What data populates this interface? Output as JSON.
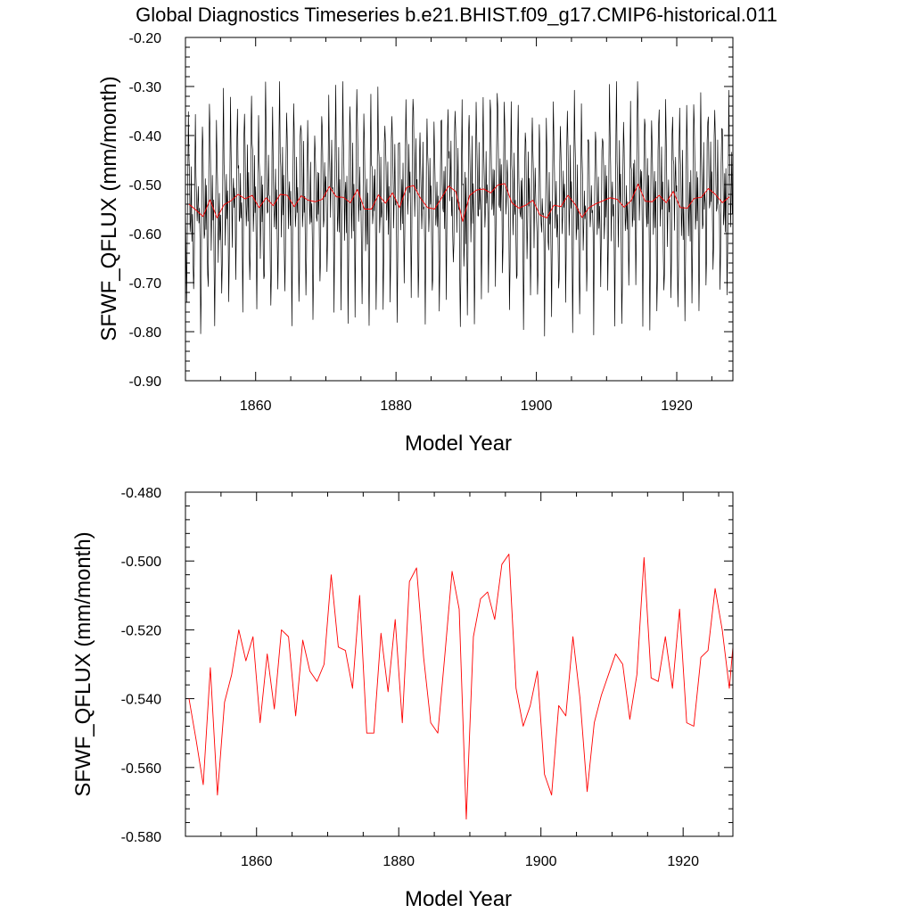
{
  "title": "Global Diagnostics Timeseries b.e21.BHIST.f09_g17.CMIP6-historical.011",
  "colors": {
    "monthly": "#000000",
    "annual": "#ff0000",
    "frame": "#000000",
    "background": "#ffffff"
  },
  "chart_data": [
    {
      "type": "line",
      "xlabel": "Model Year",
      "ylabel": "SFWF_QFLUX (mm/month)",
      "xlim": [
        1850,
        1928
      ],
      "ylim": [
        -0.9,
        -0.2
      ],
      "xticks": [
        1860,
        1880,
        1900,
        1920
      ],
      "xtick_labels": [
        "1860",
        "1880",
        "1900",
        "1920"
      ],
      "yticks": [
        -0.2,
        -0.3,
        -0.4,
        -0.5,
        -0.6,
        -0.7,
        -0.8,
        -0.9
      ],
      "ytick_labels": [
        "-0.20",
        "-0.30",
        "-0.40",
        "-0.50",
        "-0.60",
        "-0.70",
        "-0.80",
        "-0.90"
      ],
      "grid": false,
      "series": [
        {
          "role": "monthly",
          "color": "#000000",
          "start_year": 1850.0,
          "step": 0.0833333,
          "count": 936,
          "min": -0.855,
          "max": -0.29,
          "noise_seed": 11
        },
        {
          "role": "annual",
          "color": "#ff0000",
          "source": "annual_means"
        }
      ]
    },
    {
      "type": "line",
      "xlabel": "Model Year",
      "ylabel": "SFWF_QFLUX (mm/month)",
      "xlim": [
        1850,
        1927
      ],
      "ylim": [
        -0.58,
        -0.48
      ],
      "xticks": [
        1860,
        1880,
        1900,
        1920
      ],
      "xtick_labels": [
        "1860",
        "1880",
        "1900",
        "1920"
      ],
      "yticks": [
        -0.48,
        -0.5,
        -0.52,
        -0.54,
        -0.56,
        -0.58
      ],
      "ytick_labels": [
        "-0.480",
        "-0.500",
        "-0.520",
        "-0.540",
        "-0.560",
        "-0.580"
      ],
      "grid": false,
      "series": [
        {
          "role": "annual",
          "color": "#ff0000",
          "source": "annual_means"
        }
      ]
    }
  ],
  "annual_means": {
    "x": [
      1850,
      1851,
      1852,
      1853,
      1854,
      1855,
      1856,
      1857,
      1858,
      1859,
      1860,
      1861,
      1862,
      1863,
      1864,
      1865,
      1866,
      1867,
      1868,
      1869,
      1870,
      1871,
      1872,
      1873,
      1874,
      1875,
      1876,
      1877,
      1878,
      1879,
      1880,
      1881,
      1882,
      1883,
      1884,
      1885,
      1886,
      1887,
      1888,
      1889,
      1890,
      1891,
      1892,
      1893,
      1894,
      1895,
      1896,
      1897,
      1898,
      1899,
      1900,
      1901,
      1902,
      1903,
      1904,
      1905,
      1906,
      1907,
      1908,
      1909,
      1910,
      1911,
      1912,
      1913,
      1914,
      1915,
      1916,
      1917,
      1918,
      1919,
      1920,
      1921,
      1922,
      1923,
      1924,
      1925,
      1926,
      1927
    ],
    "y": [
      -0.54,
      -0.552,
      -0.565,
      -0.531,
      -0.568,
      -0.541,
      -0.533,
      -0.52,
      -0.529,
      -0.522,
      -0.547,
      -0.527,
      -0.543,
      -0.52,
      -0.522,
      -0.545,
      -0.523,
      -0.532,
      -0.535,
      -0.53,
      -0.504,
      -0.525,
      -0.526,
      -0.537,
      -0.51,
      -0.55,
      -0.55,
      -0.521,
      -0.538,
      -0.517,
      -0.547,
      -0.506,
      -0.502,
      -0.528,
      -0.547,
      -0.55,
      -0.527,
      -0.503,
      -0.514,
      -0.575,
      -0.522,
      -0.511,
      -0.509,
      -0.517,
      -0.501,
      -0.498,
      -0.537,
      -0.548,
      -0.542,
      -0.532,
      -0.562,
      -0.568,
      -0.542,
      -0.545,
      -0.522,
      -0.54,
      -0.567,
      -0.547,
      -0.539,
      -0.533,
      -0.527,
      -0.53,
      -0.546,
      -0.533,
      -0.499,
      -0.534,
      -0.535,
      -0.522,
      -0.537,
      -0.514,
      -0.547,
      -0.548,
      -0.528,
      -0.526,
      -0.508,
      -0.52,
      -0.537,
      -0.525
    ]
  }
}
